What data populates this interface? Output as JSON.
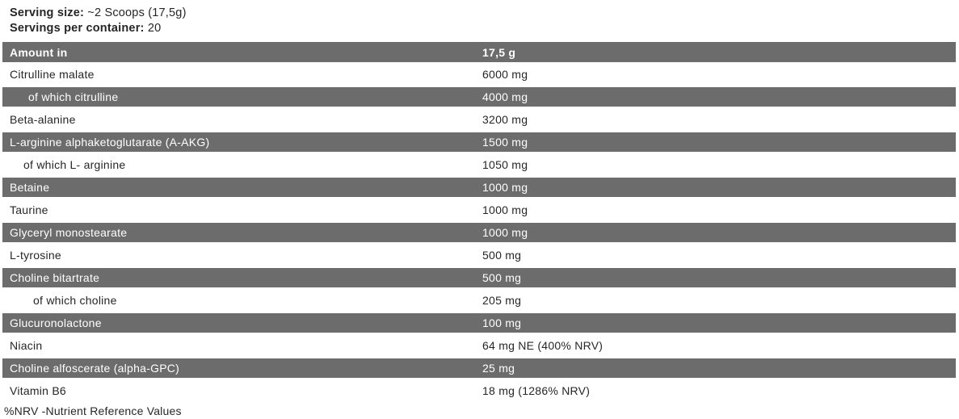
{
  "colors": {
    "row_dark": "#6c6c6c",
    "row_light": "#ffffff",
    "text_dark": "#262626",
    "text_light": "#ffffff"
  },
  "serving_info": {
    "serving_size_label": "Serving size:",
    "serving_size_value": "~2 Scoops (17,5g)",
    "servings_per_container_label": "Servings per container:",
    "servings_per_container_value": "20"
  },
  "table": {
    "columns": {
      "name_header": "Amount in",
      "amount_header": "17,5 g"
    },
    "rows": [
      {
        "name": "Citrulline malate",
        "amount": "6000 mg",
        "shade": "light",
        "indent": 0
      },
      {
        "name": "of which citrulline",
        "amount": "4000 mg",
        "shade": "dark",
        "indent": 23
      },
      {
        "name": "Beta-alanine",
        "amount": "3200 mg",
        "shade": "light",
        "indent": 0
      },
      {
        "name": "L-arginine alphaketoglutarate (A-AKG)",
        "amount": "1500 mg",
        "shade": "dark",
        "indent": 0
      },
      {
        "name": "of which L- arginine",
        "amount": "1050 mg",
        "shade": "light",
        "indent": 17
      },
      {
        "name": "Betaine",
        "amount": "1000 mg",
        "shade": "dark",
        "indent": 0
      },
      {
        "name": "Taurine",
        "amount": "1000 mg",
        "shade": "light",
        "indent": 0
      },
      {
        "name": "Glyceryl monostearate",
        "amount": "1000 mg",
        "shade": "dark",
        "indent": 0
      },
      {
        "name": "L-tyrosine",
        "amount": "500 mg",
        "shade": "light",
        "indent": 0
      },
      {
        "name": "Choline bitartrate",
        "amount": "500 mg",
        "shade": "dark",
        "indent": 0
      },
      {
        "name": "of which choline",
        "amount": "205 mg",
        "shade": "light",
        "indent": 29
      },
      {
        "name": "Glucuronolactone",
        "amount": "100 mg",
        "shade": "dark",
        "indent": 0
      },
      {
        "name": "Niacin",
        "amount": "64 mg NE (400% NRV)",
        "shade": "light",
        "indent": 0
      },
      {
        "name": "Choline alfoscerate (alpha-GPC)",
        "amount": "25 mg",
        "shade": "dark",
        "indent": 0
      },
      {
        "name": "Vitamin B6",
        "amount": "18 mg (1286% NRV)",
        "shade": "light",
        "indent": 0
      }
    ]
  },
  "footer": {
    "note": "%NRV -Nutrient Reference Values"
  }
}
